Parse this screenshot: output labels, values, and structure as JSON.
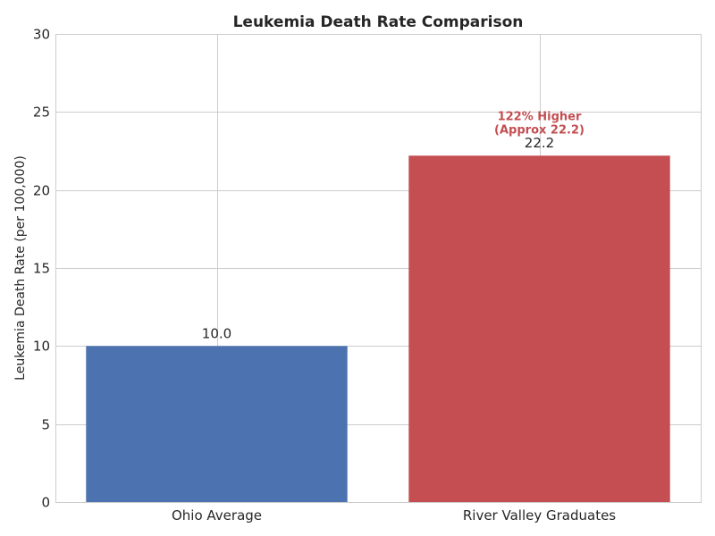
{
  "chart_data": {
    "type": "bar",
    "title": "Leukemia Death Rate Comparison",
    "xlabel": "",
    "ylabel": "Leukemia Death Rate (per 100,000)",
    "ylim": [
      0,
      30
    ],
    "yticks": [
      0,
      5,
      10,
      15,
      20,
      25,
      30
    ],
    "grid": true,
    "categories": [
      "Ohio Average",
      "River Valley Graduates"
    ],
    "values": [
      10.0,
      22.2
    ],
    "value_labels": [
      "10.0",
      "22.2"
    ],
    "colors": [
      "#4c72b0",
      "#c44e52"
    ],
    "annotation": {
      "category": "River Valley Graduates",
      "lines": [
        "122% Higher",
        "(Approx 22.2)"
      ],
      "y": 23.4,
      "color": "#c44e52"
    }
  }
}
